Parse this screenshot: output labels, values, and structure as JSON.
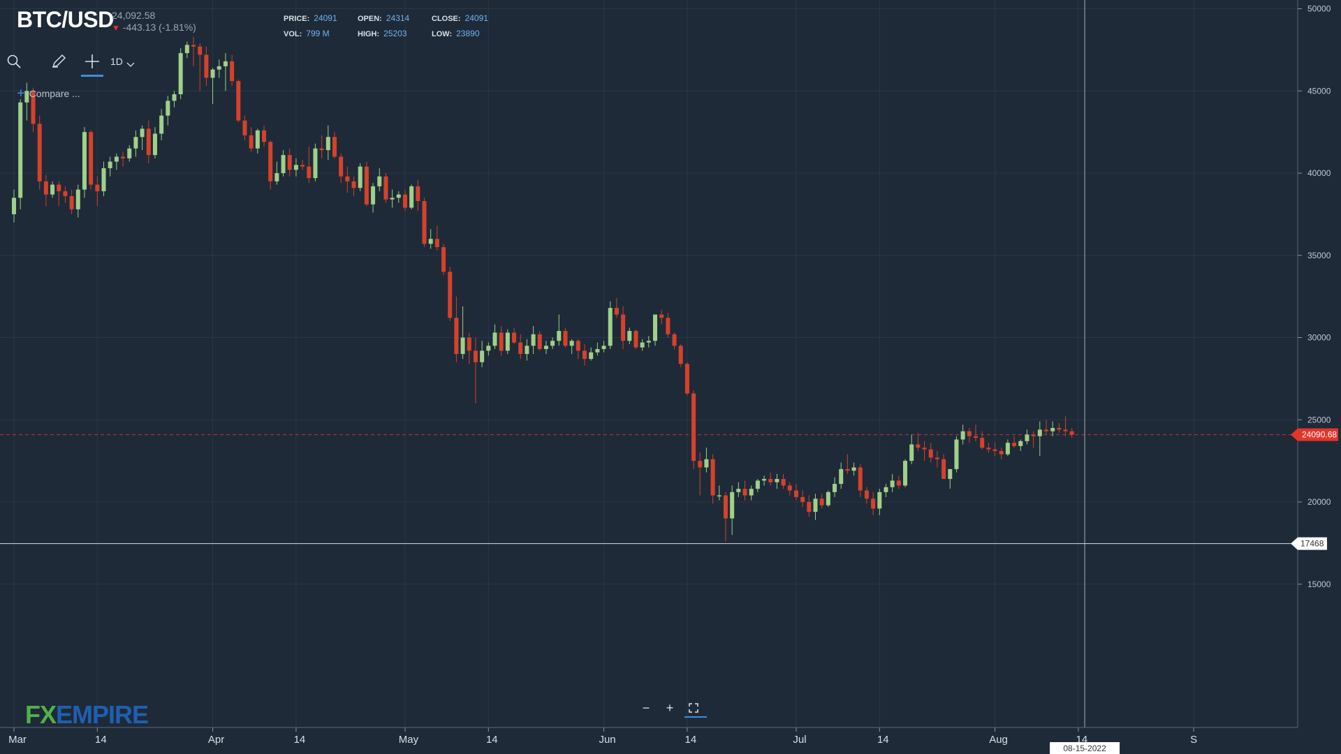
{
  "header": {
    "symbol": "BTC/USD",
    "last_price": "24,092.58",
    "change": "-443.13 (-1.81%)",
    "price_label": "PRICE:",
    "price": "24091",
    "open_label": "OPEN:",
    "open": "24314",
    "close_label": "CLOSE:",
    "close": "24091",
    "vol_label": "VOL:",
    "vol": "799 M",
    "high_label": "HIGH:",
    "high": "25203",
    "low_label": "LOW:",
    "low": "23890"
  },
  "toolbar": {
    "timeframe": "1D",
    "compare_label": "Compare ..."
  },
  "logo": {
    "fx": "FX",
    "empire": "EMPIRE"
  },
  "colors": {
    "background": "#1e2a38",
    "up": "#9fd08a",
    "down": "#d6412a",
    "price_line": "#e5342a",
    "accent": "#3b8fe0"
  },
  "chart_data": {
    "type": "candlestick",
    "symbol": "BTC/USD",
    "interval": "1D",
    "x_start": "2022-03-01",
    "ylim": [
      10000,
      55000
    ],
    "y_ticks": [
      15000,
      20000,
      25000,
      30000,
      35000,
      40000,
      45000,
      50000
    ],
    "x_ticks": [
      "Mar",
      "14",
      "Apr",
      "14",
      "May",
      "14",
      "Jun",
      "14",
      "Jul",
      "14",
      "Aug",
      "14",
      "S"
    ],
    "x_tick_dates": [
      "2022-03-01",
      "2022-03-14",
      "2022-04-01",
      "2022-04-14",
      "2022-05-01",
      "2022-05-14",
      "2022-06-01",
      "2022-06-14",
      "2022-07-01",
      "2022-07-14",
      "2022-08-01",
      "2022-08-14",
      "2022-09-01"
    ],
    "current_price_marker": "24090.68",
    "current_price_value": 24090.68,
    "horizontal_line_label": "17468",
    "horizontal_line_value": 17468,
    "crosshair_date_label": "08-15-2022",
    "crosshair_date": "2022-08-15",
    "grid": true,
    "candles": [
      [
        37500,
        39000,
        37000,
        38500
      ],
      [
        38500,
        44500,
        37800,
        44300
      ],
      [
        44300,
        45500,
        43200,
        45000
      ],
      [
        45000,
        45200,
        42500,
        43000
      ],
      [
        43000,
        43500,
        39000,
        39500
      ],
      [
        39500,
        39900,
        38000,
        38700
      ],
      [
        38700,
        39500,
        38500,
        39300
      ],
      [
        39300,
        39500,
        38000,
        38900
      ],
      [
        38900,
        39200,
        38200,
        38600
      ],
      [
        38600,
        39000,
        37500,
        37800
      ],
      [
        37800,
        39300,
        37300,
        39000
      ],
      [
        39000,
        42800,
        38500,
        42500
      ],
      [
        42500,
        42600,
        39000,
        39300
      ],
      [
        39300,
        39800,
        38000,
        38900
      ],
      [
        38900,
        40700,
        38600,
        40300
      ],
      [
        40300,
        41000,
        39800,
        40700
      ],
      [
        40700,
        41200,
        40200,
        41000
      ],
      [
        41000,
        41300,
        40400,
        40900
      ],
      [
        40900,
        41700,
        40700,
        41500
      ],
      [
        41500,
        42600,
        41000,
        42200
      ],
      [
        42200,
        42900,
        41400,
        42700
      ],
      [
        42700,
        43200,
        40600,
        41100
      ],
      [
        41100,
        42800,
        40900,
        42400
      ],
      [
        42400,
        43900,
        42000,
        43500
      ],
      [
        43500,
        44700,
        42900,
        44400
      ],
      [
        44400,
        45000,
        44000,
        44800
      ],
      [
        44800,
        47600,
        44500,
        47300
      ],
      [
        47300,
        48000,
        47000,
        47800
      ],
      [
        47800,
        48300,
        46500,
        47700
      ],
      [
        47700,
        47900,
        45000,
        47200
      ],
      [
        47200,
        47700,
        45300,
        45800
      ],
      [
        45800,
        46400,
        44200,
        46300
      ],
      [
        46300,
        46900,
        45800,
        46500
      ],
      [
        46500,
        47300,
        45000,
        46800
      ],
      [
        46800,
        47200,
        45300,
        45600
      ],
      [
        45600,
        45700,
        43100,
        43200
      ],
      [
        43200,
        43500,
        42000,
        42300
      ],
      [
        42300,
        42800,
        41300,
        41500
      ],
      [
        41500,
        42700,
        41200,
        42600
      ],
      [
        42600,
        42900,
        41600,
        41900
      ],
      [
        41900,
        42000,
        39000,
        39500
      ],
      [
        39500,
        40700,
        39300,
        40000
      ],
      [
        40000,
        41400,
        39800,
        41100
      ],
      [
        41100,
        41500,
        39800,
        40200
      ],
      [
        40200,
        40900,
        39800,
        40500
      ],
      [
        40500,
        40800,
        40200,
        40400
      ],
      [
        40400,
        41600,
        39400,
        39700
      ],
      [
        39700,
        41800,
        39500,
        41500
      ],
      [
        41500,
        42300,
        40900,
        41400
      ],
      [
        41400,
        42900,
        40800,
        42200
      ],
      [
        42200,
        42500,
        40900,
        41000
      ],
      [
        41000,
        41200,
        39400,
        39800
      ],
      [
        39800,
        40400,
        38800,
        39500
      ],
      [
        39500,
        39800,
        38600,
        39100
      ],
      [
        39100,
        40600,
        38900,
        40400
      ],
      [
        40400,
        40700,
        38000,
        38100
      ],
      [
        38100,
        39400,
        37600,
        39200
      ],
      [
        39200,
        40300,
        38900,
        39800
      ],
      [
        39800,
        40000,
        38200,
        38400
      ],
      [
        38400,
        39000,
        37900,
        38500
      ],
      [
        38500,
        38900,
        38200,
        38700
      ],
      [
        38700,
        39000,
        37700,
        37900
      ],
      [
        37900,
        39300,
        37800,
        39200
      ],
      [
        39200,
        39600,
        37700,
        38300
      ],
      [
        38300,
        38500,
        35500,
        35700
      ],
      [
        35700,
        36600,
        35400,
        36000
      ],
      [
        36000,
        36800,
        35300,
        35500
      ],
      [
        35500,
        35700,
        33800,
        34000
      ],
      [
        34000,
        34300,
        31000,
        31200
      ],
      [
        31200,
        32500,
        28500,
        29000
      ],
      [
        29000,
        31900,
        28700,
        30000
      ],
      [
        30000,
        30300,
        28400,
        29200
      ],
      [
        29200,
        30000,
        26000,
        28500
      ],
      [
        28500,
        29800,
        28200,
        29200
      ],
      [
        29200,
        29700,
        28900,
        29500
      ],
      [
        29500,
        30800,
        29300,
        30300
      ],
      [
        30300,
        30700,
        28900,
        29200
      ],
      [
        29200,
        30500,
        29000,
        30300
      ],
      [
        30300,
        30600,
        29600,
        29700
      ],
      [
        29700,
        30200,
        28700,
        29000
      ],
      [
        29000,
        29900,
        28600,
        29500
      ],
      [
        29500,
        30700,
        29000,
        30200
      ],
      [
        30200,
        30400,
        29200,
        29300
      ],
      [
        29300,
        29800,
        29000,
        29500
      ],
      [
        29500,
        30000,
        29300,
        29800
      ],
      [
        29800,
        31400,
        29500,
        30400
      ],
      [
        30400,
        30600,
        29400,
        29500
      ],
      [
        29500,
        29900,
        29000,
        29800
      ],
      [
        29800,
        29900,
        28700,
        29200
      ],
      [
        29200,
        29600,
        28300,
        28700
      ],
      [
        28700,
        29400,
        28600,
        29100
      ],
      [
        29100,
        29700,
        28900,
        29300
      ],
      [
        29300,
        29800,
        29100,
        29500
      ],
      [
        29500,
        32200,
        29300,
        31800
      ],
      [
        31800,
        32400,
        31200,
        31400
      ],
      [
        31400,
        31900,
        29300,
        29800
      ],
      [
        29800,
        30600,
        29600,
        30400
      ],
      [
        30400,
        30500,
        29300,
        29400
      ],
      [
        29400,
        29900,
        29200,
        29700
      ],
      [
        29700,
        30100,
        29400,
        29800
      ],
      [
        29800,
        31300,
        29500,
        31400
      ],
      [
        31400,
        31700,
        30800,
        31200
      ],
      [
        31200,
        31500,
        30000,
        30200
      ],
      [
        30200,
        30300,
        29300,
        29500
      ],
      [
        29500,
        29600,
        28200,
        28400
      ],
      [
        28400,
        28500,
        26500,
        26600
      ],
      [
        26600,
        26800,
        22000,
        22500
      ],
      [
        22500,
        23000,
        20400,
        22100
      ],
      [
        22100,
        23300,
        21800,
        22600
      ],
      [
        22600,
        22900,
        19900,
        20400
      ],
      [
        20400,
        21000,
        20100,
        20400
      ],
      [
        20400,
        20600,
        17600,
        19000
      ],
      [
        19000,
        21000,
        18000,
        20600
      ],
      [
        20600,
        21200,
        20300,
        20800
      ],
      [
        20800,
        21300,
        20100,
        20400
      ],
      [
        20400,
        21000,
        20100,
        20800
      ],
      [
        20800,
        21400,
        20600,
        21300
      ],
      [
        21300,
        21600,
        21000,
        21400
      ],
      [
        21400,
        21800,
        21000,
        21200
      ],
      [
        21200,
        21700,
        20800,
        21400
      ],
      [
        21400,
        21700,
        20800,
        21000
      ],
      [
        21000,
        21200,
        20400,
        20700
      ],
      [
        20700,
        21100,
        20100,
        20300
      ],
      [
        20300,
        20700,
        19700,
        20000
      ],
      [
        20000,
        20400,
        19100,
        19400
      ],
      [
        19400,
        20500,
        18900,
        20200
      ],
      [
        20200,
        20500,
        19600,
        19800
      ],
      [
        19800,
        20700,
        19700,
        20600
      ],
      [
        20600,
        21500,
        20300,
        21100
      ],
      [
        21100,
        22400,
        20800,
        22000
      ],
      [
        22000,
        22900,
        21700,
        21900
      ],
      [
        21900,
        22400,
        21600,
        22100
      ],
      [
        22100,
        22300,
        20300,
        20700
      ],
      [
        20700,
        20900,
        19900,
        20200
      ],
      [
        20200,
        20600,
        19200,
        19600
      ],
      [
        19600,
        20800,
        19200,
        20600
      ],
      [
        20600,
        21100,
        20300,
        20900
      ],
      [
        20900,
        21700,
        20600,
        21300
      ],
      [
        21300,
        21600,
        20800,
        21000
      ],
      [
        21000,
        22600,
        20900,
        22500
      ],
      [
        22500,
        24100,
        22300,
        23500
      ],
      [
        23500,
        24200,
        23100,
        23300
      ],
      [
        23300,
        23700,
        22500,
        23200
      ],
      [
        23200,
        23600,
        22400,
        22700
      ],
      [
        22700,
        23100,
        22100,
        22600
      ],
      [
        22600,
        22900,
        21600,
        21400
      ],
      [
        21400,
        21900,
        20800,
        22000
      ],
      [
        22000,
        24000,
        21800,
        23800
      ],
      [
        23800,
        24700,
        23500,
        24300
      ],
      [
        24300,
        24500,
        23600,
        24000
      ],
      [
        24000,
        24700,
        23700,
        23900
      ],
      [
        23900,
        24300,
        23200,
        23300
      ],
      [
        23300,
        23600,
        23000,
        23200
      ],
      [
        23200,
        23600,
        22800,
        23100
      ],
      [
        23100,
        23300,
        22600,
        22900
      ],
      [
        22900,
        23800,
        22800,
        23600
      ],
      [
        23600,
        24000,
        23300,
        23400
      ],
      [
        23400,
        23800,
        23100,
        23700
      ],
      [
        23700,
        24400,
        23500,
        24100
      ],
      [
        24100,
        24300,
        23300,
        24000
      ],
      [
        24000,
        24900,
        22800,
        24400
      ],
      [
        24400,
        25000,
        24100,
        24300
      ],
      [
        24300,
        24900,
        24000,
        24500
      ],
      [
        24500,
        24800,
        24200,
        24400
      ],
      [
        24400,
        25200,
        24000,
        24300
      ],
      [
        24300,
        24500,
        23900,
        24091
      ]
    ]
  }
}
